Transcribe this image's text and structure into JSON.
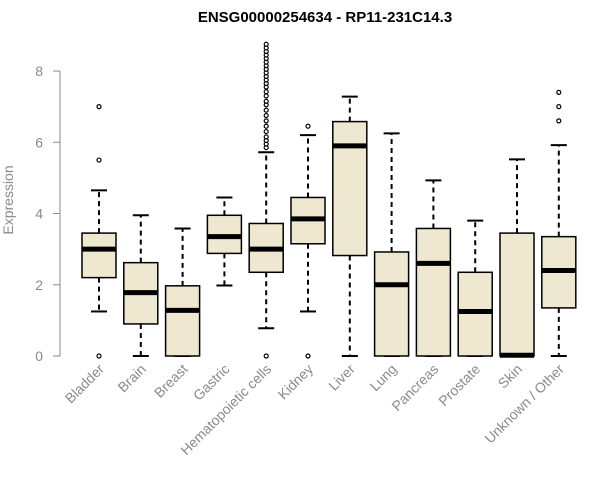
{
  "chart_data": {
    "type": "boxplot",
    "title": "ENSG00000254634 - RP11-231C14.3",
    "xlabel": "",
    "ylabel": "Expression",
    "ylim": [
      0,
      8.8
    ],
    "yticks": [
      0,
      2,
      4,
      6,
      8
    ],
    "grid": false,
    "box_fill": "#efe8d1",
    "box_stroke": "#000000",
    "categories": [
      "Bladder",
      "Brain",
      "Breast",
      "Gastric",
      "Hematopoietic cells",
      "Kidney",
      "Liver",
      "Lung",
      "Pancreas",
      "Prostate",
      "Skin",
      "Unknown / Other"
    ],
    "boxes": [
      {
        "category": "Bladder",
        "whisker_low": 1.25,
        "q1": 2.2,
        "median": 3.0,
        "q3": 3.45,
        "whisker_high": 4.65,
        "outliers": [
          0.0,
          5.5,
          7.0
        ]
      },
      {
        "category": "Brain",
        "whisker_low": 0.0,
        "q1": 0.9,
        "median": 1.78,
        "q3": 2.62,
        "whisker_high": 3.95,
        "outliers": []
      },
      {
        "category": "Breast",
        "whisker_low": 0.0,
        "q1": 0.0,
        "median": 1.28,
        "q3": 1.97,
        "whisker_high": 3.58,
        "outliers": []
      },
      {
        "category": "Gastric",
        "whisker_low": 1.98,
        "q1": 2.88,
        "median": 3.35,
        "q3": 3.95,
        "whisker_high": 4.45,
        "outliers": []
      },
      {
        "category": "Hematopoietic cells",
        "whisker_low": 0.78,
        "q1": 2.35,
        "median": 3.0,
        "q3": 3.72,
        "whisker_high": 5.72,
        "outliers": [
          0.0,
          5.85,
          5.95,
          6.05,
          6.15,
          6.3,
          6.45,
          6.6,
          6.75,
          6.9,
          7.05,
          7.15,
          7.3,
          7.42,
          7.55,
          7.65,
          7.75,
          7.85,
          7.95,
          8.05,
          8.15,
          8.25,
          8.35,
          8.45,
          8.55,
          8.65,
          8.75
        ]
      },
      {
        "category": "Kidney",
        "whisker_low": 1.25,
        "q1": 3.15,
        "median": 3.85,
        "q3": 4.45,
        "whisker_high": 6.2,
        "outliers": [
          0.0,
          6.45
        ]
      },
      {
        "category": "Liver",
        "whisker_low": 0.0,
        "q1": 2.82,
        "median": 5.9,
        "q3": 6.58,
        "whisker_high": 7.28,
        "outliers": []
      },
      {
        "category": "Lung",
        "whisker_low": 0.0,
        "q1": 0.0,
        "median": 2.0,
        "q3": 2.92,
        "whisker_high": 6.25,
        "outliers": []
      },
      {
        "category": "Pancreas",
        "whisker_low": 0.0,
        "q1": 0.0,
        "median": 2.6,
        "q3": 3.58,
        "whisker_high": 4.93,
        "outliers": []
      },
      {
        "category": "Prostate",
        "whisker_low": 0.0,
        "q1": 0.0,
        "median": 1.25,
        "q3": 2.35,
        "whisker_high": 3.8,
        "outliers": []
      },
      {
        "category": "Skin",
        "whisker_low": 0.0,
        "q1": 0.0,
        "median": 0.02,
        "q3": 3.45,
        "whisker_high": 5.52,
        "outliers": []
      },
      {
        "category": "Unknown / Other",
        "whisker_low": 0.0,
        "q1": 1.35,
        "median": 2.4,
        "q3": 3.35,
        "whisker_high": 5.92,
        "outliers": [
          6.6,
          7.0,
          7.4
        ]
      }
    ]
  }
}
